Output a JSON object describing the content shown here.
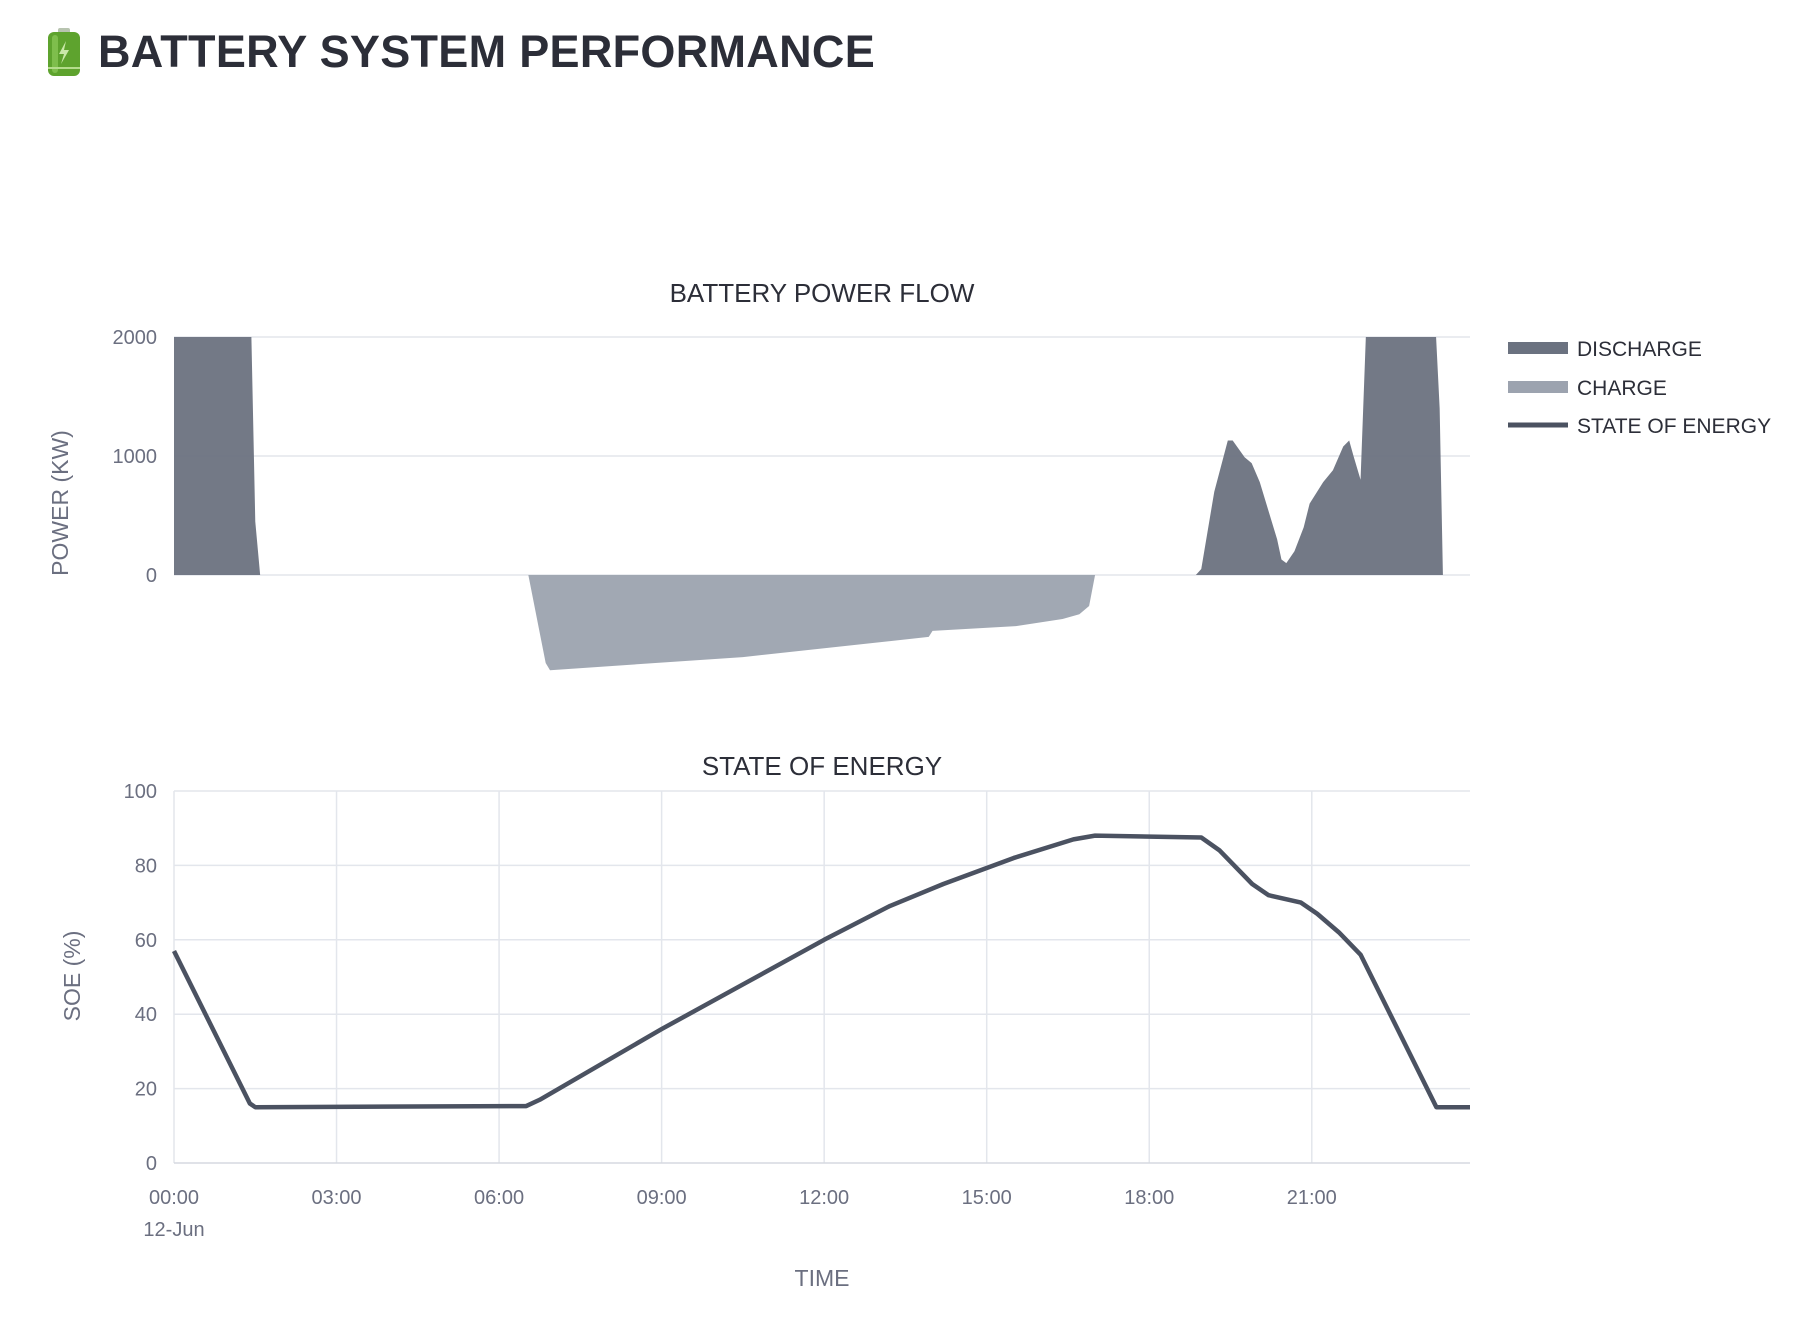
{
  "header": {
    "title": "BATTERY SYSTEM PERFORMANCE",
    "icon": "battery-icon"
  },
  "chart_data": [
    {
      "type": "area",
      "title": "BATTERY POWER FLOW",
      "xlabel": "",
      "ylabel": "POWER (KW)",
      "x_unit": "hours",
      "xlim": [
        0,
        23.92
      ],
      "ylim": [
        -850,
        2000
      ],
      "yticks": [
        0,
        1000,
        2000
      ],
      "ytick_labels": [
        "0",
        "1000",
        "2000"
      ],
      "grid": "horizontal",
      "legend": {
        "placement": "right",
        "entries": [
          "DISCHARGE",
          "CHARGE",
          "STATE OF ENERGY"
        ]
      },
      "series": [
        {
          "name": "DISCHARGE",
          "color": "#6b7280",
          "points": [
            [
              0,
              2400
            ],
            [
              1.41,
              2400
            ],
            [
              1.5,
              450
            ],
            [
              1.59,
              0
            ],
            [
              18.86,
              0
            ],
            [
              18.96,
              50
            ],
            [
              19.2,
              700
            ],
            [
              19.45,
              1130
            ],
            [
              19.54,
              1130
            ],
            [
              19.76,
              990
            ],
            [
              19.89,
              940
            ],
            [
              20.04,
              780
            ],
            [
              20.36,
              300
            ],
            [
              20.44,
              130
            ],
            [
              20.53,
              100
            ],
            [
              20.68,
              200
            ],
            [
              20.85,
              400
            ],
            [
              20.96,
              600
            ],
            [
              21.21,
              780
            ],
            [
              21.39,
              880
            ],
            [
              21.58,
              1080
            ],
            [
              21.69,
              1130
            ],
            [
              21.77,
              1000
            ],
            [
              21.9,
              800
            ],
            [
              22.03,
              2400
            ],
            [
              23.25,
              2400
            ],
            [
              23.36,
              1400
            ],
            [
              23.42,
              0
            ]
          ]
        },
        {
          "name": "CHARGE",
          "color": "#9ca3af",
          "points": [
            [
              6.54,
              0
            ],
            [
              6.86,
              -740
            ],
            [
              6.94,
              -800
            ],
            [
              10.5,
              -690
            ],
            [
              13.93,
              -520
            ],
            [
              14.0,
              -470
            ],
            [
              15.54,
              -430
            ],
            [
              16.4,
              -370
            ],
            [
              16.71,
              -330
            ],
            [
              16.89,
              -260
            ],
            [
              17.0,
              0
            ]
          ]
        }
      ]
    },
    {
      "type": "line",
      "title": "STATE OF ENERGY",
      "xlabel": "TIME",
      "ylabel": "SOE (%)",
      "x_unit": "hours",
      "xlim": [
        0,
        23.92
      ],
      "ylim": [
        0,
        100
      ],
      "yticks": [
        0,
        20,
        40,
        60,
        80,
        100
      ],
      "ytick_labels": [
        "0",
        "20",
        "40",
        "60",
        "80",
        "100"
      ],
      "xticks": [
        0,
        3,
        6,
        9,
        12,
        15,
        18,
        21
      ],
      "xtick_labels": [
        "00:00",
        "03:00",
        "06:00",
        "09:00",
        "12:00",
        "15:00",
        "18:00",
        "21:00"
      ],
      "xtick_sublabel": "12-Jun",
      "grid": "both",
      "series": [
        {
          "name": "STATE OF ENERGY",
          "color": "#4b5261",
          "points": [
            [
              0,
              57
            ],
            [
              1.4,
              16
            ],
            [
              1.5,
              15
            ],
            [
              6.5,
              15.3
            ],
            [
              6.75,
              17
            ],
            [
              9,
              36
            ],
            [
              10.5,
              48
            ],
            [
              12,
              60
            ],
            [
              13.2,
              69
            ],
            [
              14.2,
              75
            ],
            [
              15.5,
              82
            ],
            [
              16.6,
              87
            ],
            [
              17,
              88
            ],
            [
              18.96,
              87.5
            ],
            [
              19.3,
              84
            ],
            [
              19.9,
              75
            ],
            [
              20.2,
              72
            ],
            [
              20.8,
              70
            ],
            [
              21.1,
              67
            ],
            [
              21.5,
              62
            ],
            [
              21.9,
              56
            ],
            [
              23.3,
              15
            ],
            [
              23.92,
              15
            ]
          ]
        }
      ]
    }
  ]
}
